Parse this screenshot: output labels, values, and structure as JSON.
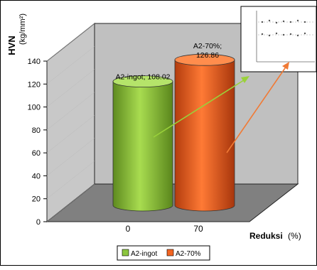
{
  "chart_data": {
    "type": "bar",
    "categories": [
      "0",
      "70"
    ],
    "series": [
      {
        "name": "A2-ingot",
        "values": [
          108.02,
          null
        ],
        "label": "A2-ingot; 108.02",
        "color": "#8cc63f"
      },
      {
        "name": "A2-70%",
        "values": [
          null,
          126.86
        ],
        "label_line1": "A2-70%;",
        "label_line2": "126.86",
        "color": "#f26522"
      }
    ],
    "ylabel_main": "HVN",
    "ylabel_unit": "(kg/mm²)",
    "xlabel_main": "Reduksi",
    "xlabel_unit": "(%)",
    "yticks": [
      0,
      20,
      40,
      60,
      80,
      100,
      120,
      140
    ],
    "ylim": [
      0,
      140
    ],
    "grid": false,
    "legend_position": "bottom",
    "style": "3d-cylinder",
    "colors": {
      "wall": "#c0c0c0",
      "floor": "#808080",
      "green": "#8cc63f",
      "orange": "#f26522"
    }
  }
}
